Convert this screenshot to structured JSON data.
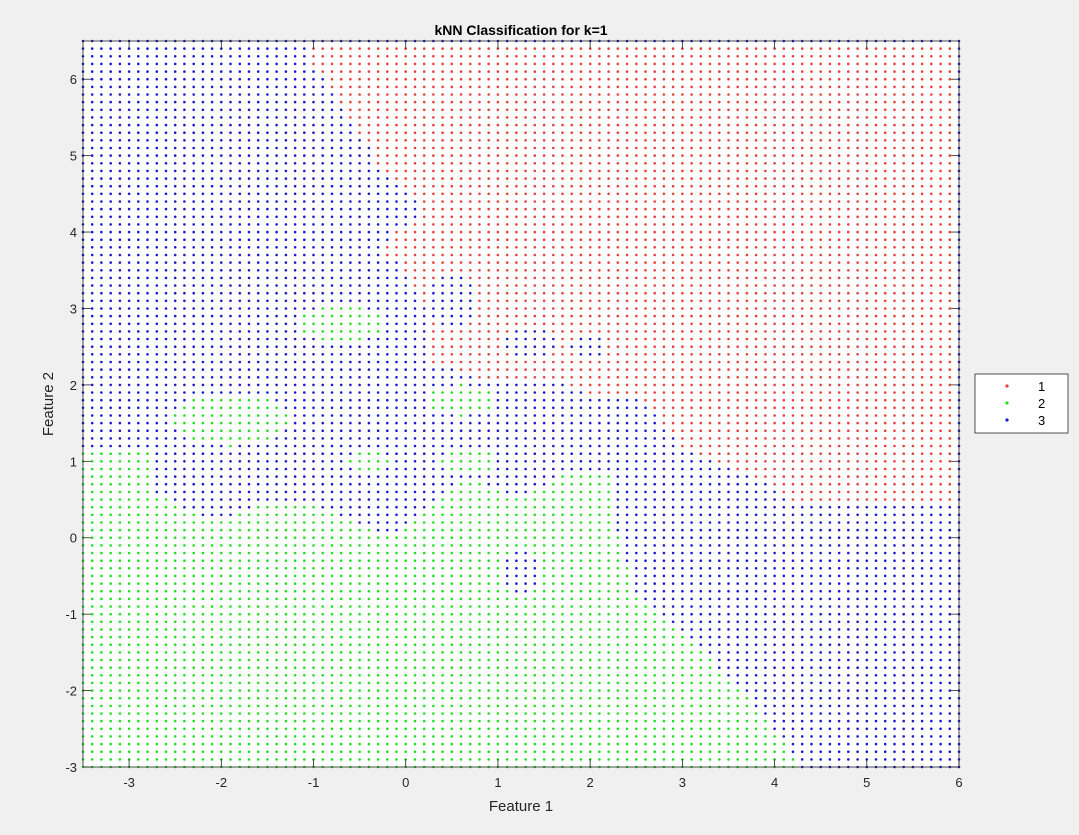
{
  "chart_data": {
    "type": "scatter",
    "title": "kNN Classification for k=1",
    "xlabel": "Feature 1",
    "ylabel": "Feature 2",
    "xlim": [
      -3.5,
      6
    ],
    "ylim": [
      -3,
      6.5
    ],
    "xticks": [
      -3,
      -2,
      -1,
      0,
      1,
      2,
      3,
      4,
      5,
      6
    ],
    "yticks": [
      -3,
      -2,
      -1,
      0,
      1,
      2,
      3,
      4,
      5,
      6
    ],
    "grid": false,
    "legend_position": "outside-right",
    "grid_step": 0.1,
    "series": [
      {
        "name": "1",
        "color": "#e8403a"
      },
      {
        "name": "2",
        "color": "#20e020"
      },
      {
        "name": "3",
        "color": "#1a1ad0"
      }
    ],
    "regions": {
      "note": "Decision regions of a 1-NN classifier evaluated on a regular grid over the plot area",
      "red_region_outline": [
        [
          -1.0,
          6.5
        ],
        [
          6,
          6.5
        ],
        [
          6,
          0.4
        ],
        [
          4.2,
          0.5
        ],
        [
          3.8,
          0.8
        ],
        [
          3.0,
          1.2
        ],
        [
          2.5,
          1.9
        ],
        [
          2.0,
          1.9
        ],
        [
          1.6,
          2.1
        ],
        [
          1.0,
          2.0
        ],
        [
          0.3,
          2.3
        ],
        [
          0.3,
          2.9
        ],
        [
          0.0,
          3.5
        ],
        [
          -0.2,
          3.9
        ],
        [
          0.2,
          4.3
        ],
        [
          -0.3,
          4.9
        ],
        [
          -0.6,
          5.5
        ],
        [
          -1.0,
          6.2
        ]
      ],
      "blue_region_outline_lower_right": [
        [
          2.3,
          0.9
        ],
        [
          3.0,
          1.2
        ],
        [
          3.8,
          0.8
        ],
        [
          4.2,
          0.5
        ],
        [
          6,
          0.4
        ],
        [
          6,
          -3
        ],
        [
          4.3,
          -3
        ],
        [
          3.8,
          -2.2
        ],
        [
          3.0,
          -1.2
        ],
        [
          2.5,
          -0.7
        ],
        [
          2.3,
          0.1
        ]
      ],
      "green_region_outline_lower_left": [
        [
          -3.5,
          1.2
        ],
        [
          -2.8,
          1.2
        ],
        [
          -2.7,
          0.6
        ],
        [
          -2.1,
          0.2
        ],
        [
          -1.4,
          0.5
        ],
        [
          -0.9,
          0.4
        ],
        [
          -0.1,
          0.0
        ],
        [
          0.2,
          0.4
        ],
        [
          0.7,
          0.8
        ],
        [
          1.2,
          0.5
        ],
        [
          1.8,
          0.9
        ],
        [
          2.3,
          0.9
        ],
        [
          2.6,
          0.5
        ],
        [
          2.3,
          0.1
        ],
        [
          2.5,
          -0.7
        ],
        [
          3.0,
          -1.2
        ],
        [
          3.8,
          -2.2
        ],
        [
          4.3,
          -3
        ],
        [
          -3.5,
          -3
        ]
      ],
      "islands": [
        {
          "class": "2",
          "center": [
            -0.7,
            2.8
          ],
          "rx": 0.45,
          "ry": 0.25
        },
        {
          "class": "2",
          "center": [
            -1.9,
            1.55
          ],
          "rx": 0.65,
          "ry": 0.35
        },
        {
          "class": "2",
          "center": [
            0.6,
            1.8
          ],
          "rx": 0.35,
          "ry": 0.2
        },
        {
          "class": "2",
          "center": [
            -0.4,
            1.0
          ],
          "rx": 0.25,
          "ry": 0.15
        },
        {
          "class": "2",
          "center": [
            0.7,
            1.0
          ],
          "rx": 0.3,
          "ry": 0.15
        },
        {
          "class": "3",
          "center": [
            1.25,
            -0.45
          ],
          "rx": 0.25,
          "ry": 0.3
        },
        {
          "class": "1",
          "center": [
            2.45,
            3.9
          ],
          "rx": 0.15,
          "ry": 0.2
        },
        {
          "class": "3",
          "center": [
            0.5,
            3.1
          ],
          "rx": 0.25,
          "ry": 0.35
        },
        {
          "class": "3",
          "center": [
            1.35,
            2.55
          ],
          "rx": 0.3,
          "ry": 0.25
        },
        {
          "class": "3",
          "center": [
            2.0,
            2.5
          ],
          "rx": 0.2,
          "ry": 0.15
        },
        {
          "class": "1",
          "center": [
            -0.1,
            3.75
          ],
          "rx": 0.15,
          "ry": 0.1
        }
      ]
    }
  }
}
